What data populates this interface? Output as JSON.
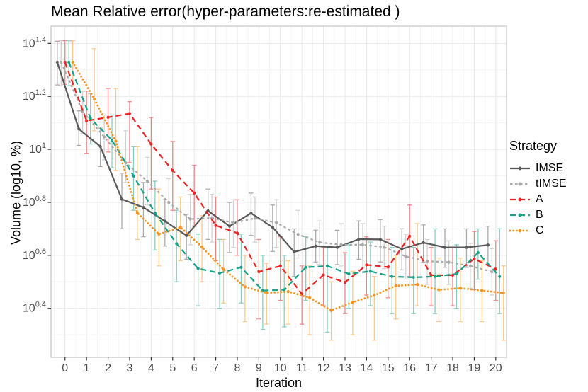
{
  "figure": {
    "title": "Mean Relative error(hyper-parameters:re-estimated )",
    "x_axis_label": "Iteration",
    "y_axis_label": "Volume (log10, %)",
    "legend_title": "Strategy",
    "background_color": "#ffffff"
  },
  "chart_data": {
    "type": "line",
    "title": "Mean Relative error(hyper-parameters:re-estimated )",
    "xlabel": "Iteration",
    "ylabel": "Volume (log10, %)",
    "y_scale": "log10",
    "x": [
      0,
      1,
      2,
      3,
      4,
      5,
      6,
      7,
      8,
      9,
      10,
      11,
      12,
      13,
      14,
      15,
      16,
      17,
      18,
      19,
      20
    ],
    "x_tick_labels": [
      "0",
      "1",
      "2",
      "3",
      "4",
      "5",
      "6",
      "7",
      "8",
      "9",
      "10",
      "11",
      "12",
      "13",
      "14",
      "15",
      "16",
      "17",
      "18",
      "19",
      "20"
    ],
    "y_tick_exponents": [
      "1.4",
      "1.2",
      "1",
      "0.8",
      "0.6",
      "0.4"
    ],
    "y_tick_logs": [
      1.4,
      1.2,
      1.0,
      0.8,
      0.6,
      0.4
    ],
    "y_minor_logs": [
      1.3,
      1.1,
      0.9,
      0.7,
      0.5,
      0.3
    ],
    "xlim": [
      -0.65,
      20.5
    ],
    "ylim_log": [
      0.215,
      1.465
    ],
    "grid": {
      "major": true,
      "minor": true
    },
    "legend_position": "right",
    "error_bars": true,
    "dodge_x": [
      -0.36,
      -0.18,
      0,
      0.18,
      0.36
    ],
    "colors": {
      "grid_major": "#e8e8e8",
      "grid_minor": "#f4f4f4",
      "panel_border": "#c4c4c4",
      "tick_mark": "#333333",
      "tick_label": "#4d4d4d"
    },
    "series": [
      {
        "name": "IMSE",
        "color": "#595959",
        "dash": "solid",
        "values_log10": [
          1.329,
          1.077,
          1.011,
          0.812,
          0.781,
          0.729,
          0.675,
          0.768,
          0.71,
          0.759,
          0.706,
          0.613,
          0.635,
          0.63,
          0.661,
          0.66,
          0.624,
          0.648,
          0.63,
          0.63,
          0.639
        ],
        "err_lo": [
          1.243,
          1.015,
          0.935,
          0.7,
          0.67,
          0.635,
          0.585,
          0.66,
          0.61,
          0.675,
          0.615,
          0.52,
          0.575,
          0.565,
          0.585,
          0.575,
          0.545,
          0.575,
          0.555,
          0.555,
          0.565
        ],
        "err_hi": [
          1.408,
          1.145,
          1.08,
          0.91,
          0.875,
          0.81,
          0.755,
          0.85,
          0.8,
          0.835,
          0.79,
          0.7,
          0.695,
          0.695,
          0.73,
          0.735,
          0.7,
          0.715,
          0.7,
          0.7,
          0.71
        ]
      },
      {
        "name": "tIMSE",
        "color": "#a9a9a9",
        "dash": "dash-small",
        "values_log10": [
          1.329,
          1.143,
          1.047,
          0.949,
          0.88,
          0.8,
          0.737,
          0.741,
          0.723,
          0.74,
          0.723,
          0.679,
          0.649,
          0.64,
          0.64,
          0.631,
          0.596,
          0.578,
          0.574,
          0.56,
          0.538
        ],
        "err_lo": [
          1.24,
          1.06,
          0.96,
          0.875,
          0.79,
          0.7,
          0.64,
          0.65,
          0.63,
          0.65,
          0.63,
          0.59,
          0.565,
          0.56,
          0.555,
          0.55,
          0.51,
          0.49,
          0.49,
          0.475,
          0.45
        ],
        "err_hi": [
          1.41,
          1.22,
          1.13,
          1.07,
          0.97,
          0.89,
          0.83,
          0.83,
          0.81,
          0.82,
          0.81,
          0.77,
          0.73,
          0.72,
          0.72,
          0.71,
          0.68,
          0.66,
          0.655,
          0.645,
          0.625
        ]
      },
      {
        "name": "A",
        "color": "#ee2222",
        "dash": "dash-long",
        "values_log10": [
          1.329,
          1.108,
          1.121,
          1.135,
          1.02,
          0.92,
          0.835,
          0.713,
          0.684,
          0.538,
          0.56,
          0.454,
          0.526,
          0.498,
          0.564,
          0.556,
          0.672,
          0.525,
          0.525,
          0.587,
          0.548
        ],
        "err_lo": [
          1.245,
          0.985,
          0.99,
          0.95,
          0.85,
          0.77,
          0.71,
          0.58,
          0.6,
          0.36,
          0.43,
          0.34,
          0.41,
          0.38,
          0.45,
          0.44,
          0.52,
          0.41,
          0.41,
          0.47,
          0.43
        ],
        "err_hi": [
          1.41,
          1.22,
          1.23,
          1.18,
          1.12,
          1.03,
          0.94,
          0.82,
          0.81,
          0.66,
          0.67,
          0.56,
          0.63,
          0.61,
          0.67,
          0.66,
          0.79,
          0.63,
          0.63,
          0.69,
          0.655
        ]
      },
      {
        "name": "B",
        "color": "#16a189",
        "dash": "dash-long",
        "values_log10": [
          1.329,
          1.117,
          1.035,
          0.9,
          0.76,
          0.644,
          0.55,
          0.533,
          0.555,
          0.467,
          0.47,
          0.555,
          0.56,
          0.53,
          0.54,
          0.52,
          0.517,
          0.52,
          0.53,
          0.61,
          0.52
        ],
        "err_lo": [
          1.24,
          1.02,
          0.93,
          0.77,
          0.62,
          0.5,
          0.41,
          0.4,
          0.42,
          0.32,
          0.33,
          0.43,
          0.31,
          0.4,
          0.41,
          0.38,
          0.38,
          0.38,
          0.4,
          0.51,
          0.38
        ],
        "err_hi": [
          1.41,
          1.21,
          1.13,
          1.01,
          0.88,
          0.77,
          0.68,
          0.66,
          0.68,
          0.6,
          0.6,
          0.67,
          0.63,
          0.64,
          0.65,
          0.63,
          0.63,
          0.7,
          0.64,
          0.7,
          0.7
        ]
      },
      {
        "name": "C",
        "color": "#f79420",
        "dash": "dotted",
        "values_log10": [
          1.329,
          1.19,
          1.031,
          0.76,
          0.68,
          0.706,
          0.631,
          0.547,
          0.481,
          0.458,
          0.463,
          0.44,
          0.392,
          0.423,
          0.449,
          0.485,
          0.49,
          0.47,
          0.476,
          0.467,
          0.458
        ],
        "err_lo": [
          1.24,
          1.07,
          0.92,
          0.66,
          0.56,
          0.58,
          0.5,
          0.42,
          0.35,
          0.34,
          0.34,
          0.3,
          0.28,
          0.3,
          0.28,
          0.36,
          0.41,
          0.35,
          0.35,
          0.35,
          0.28
        ],
        "err_hi": [
          1.41,
          1.38,
          1.23,
          1.01,
          0.85,
          0.82,
          0.75,
          0.66,
          0.6,
          0.57,
          0.58,
          0.56,
          0.5,
          0.54,
          0.52,
          0.6,
          0.72,
          0.59,
          0.59,
          0.58,
          0.56
        ]
      }
    ]
  }
}
